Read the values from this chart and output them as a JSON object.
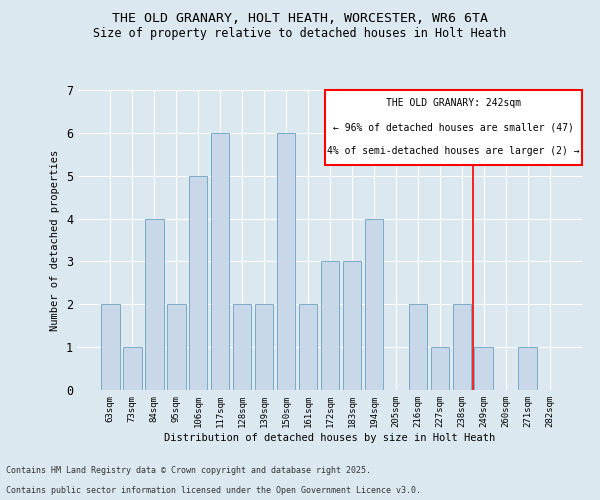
{
  "title_line1": "THE OLD GRANARY, HOLT HEATH, WORCESTER, WR6 6TA",
  "title_line2": "Size of property relative to detached houses in Holt Heath",
  "xlabel": "Distribution of detached houses by size in Holt Heath",
  "ylabel": "Number of detached properties",
  "categories": [
    "63sqm",
    "73sqm",
    "84sqm",
    "95sqm",
    "106sqm",
    "117sqm",
    "128sqm",
    "139sqm",
    "150sqm",
    "161sqm",
    "172sqm",
    "183sqm",
    "194sqm",
    "205sqm",
    "216sqm",
    "227sqm",
    "238sqm",
    "249sqm",
    "260sqm",
    "271sqm",
    "282sqm"
  ],
  "values": [
    2,
    1,
    4,
    2,
    5,
    6,
    2,
    2,
    6,
    2,
    3,
    3,
    4,
    0,
    2,
    1,
    2,
    1,
    0,
    1,
    0
  ],
  "bar_color": "#c8d8e8",
  "bar_edge_color": "#7aaac8",
  "background_color": "#dce8f0",
  "grid_color": "#ffffff",
  "ylim": [
    0,
    7
  ],
  "yticks": [
    0,
    1,
    2,
    3,
    4,
    5,
    6,
    7
  ],
  "red_line_index": 16.5,
  "annotation_title": "THE OLD GRANARY: 242sqm",
  "annotation_line1": "← 96% of detached houses are smaller (47)",
  "annotation_line2": "4% of semi-detached houses are larger (2) →",
  "footnote_line1": "Contains HM Land Registry data © Crown copyright and database right 2025.",
  "footnote_line2": "Contains public sector information licensed under the Open Government Licence v3.0."
}
